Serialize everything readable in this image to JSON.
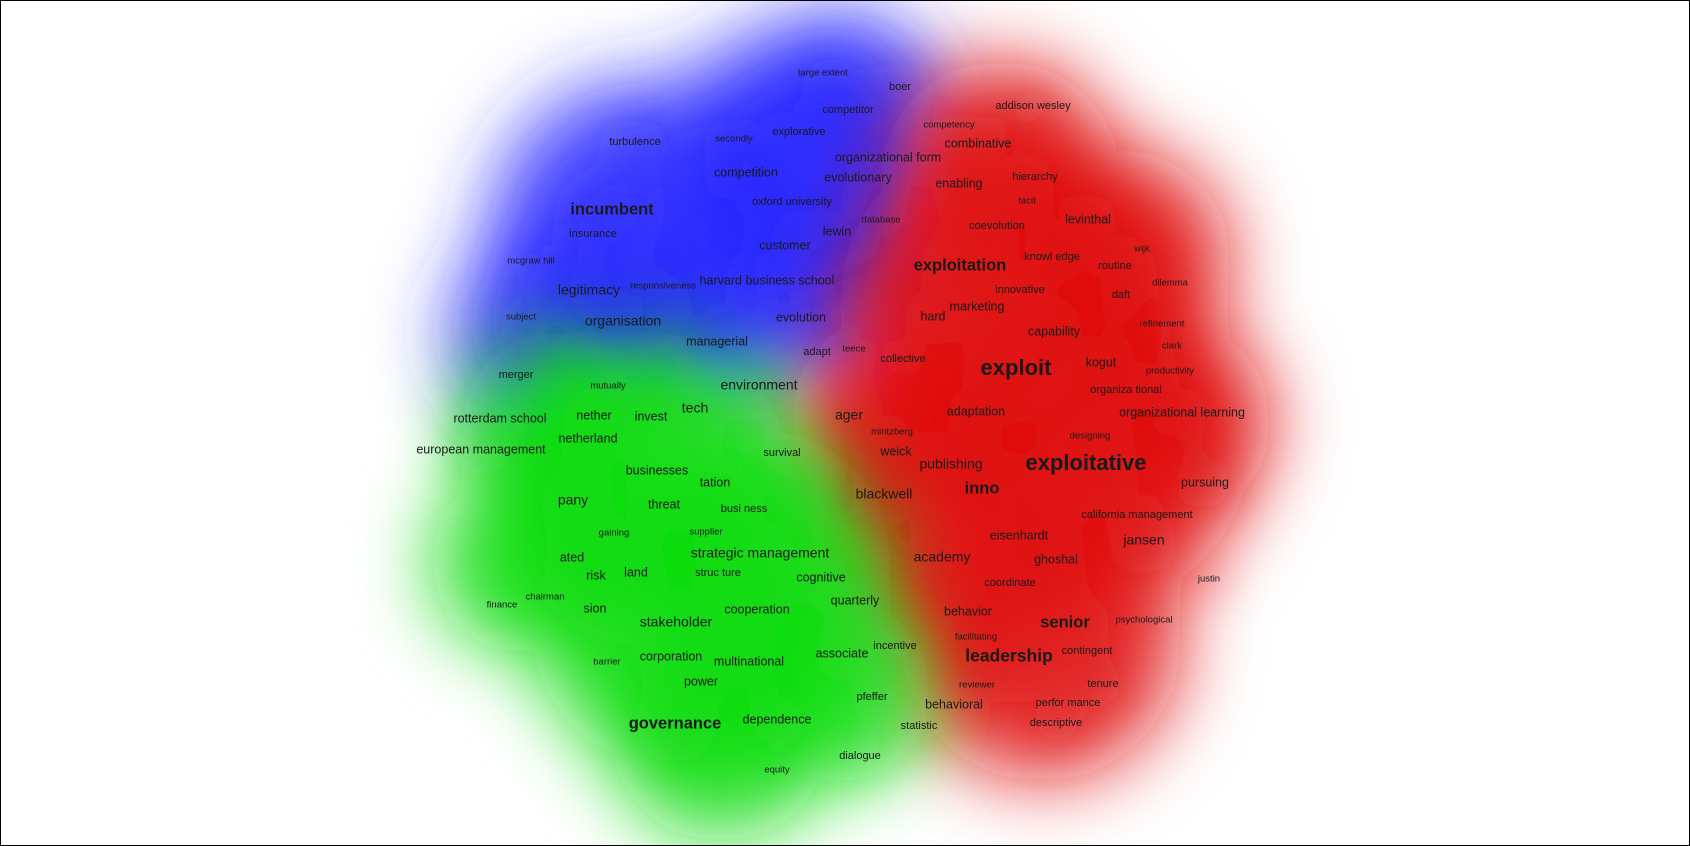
{
  "clusters": [
    {
      "name": "blue",
      "color": "#2b2bff"
    },
    {
      "name": "red",
      "color": "#e01010"
    },
    {
      "name": "green",
      "color": "#10dd10"
    }
  ],
  "terms": [
    {
      "id": "large-extent",
      "text": "large extent",
      "cluster": "blue",
      "weight": 1
    },
    {
      "id": "boer",
      "text": "boer",
      "cluster": "blue",
      "weight": 2
    },
    {
      "id": "competitor",
      "text": "competitor",
      "cluster": "blue",
      "weight": 2
    },
    {
      "id": "turbulence",
      "text": "turbulence",
      "cluster": "blue",
      "weight": 2
    },
    {
      "id": "secondly",
      "text": "secondly",
      "cluster": "blue",
      "weight": 1
    },
    {
      "id": "explorative",
      "text": "explorative",
      "cluster": "blue",
      "weight": 2
    },
    {
      "id": "organizational-form",
      "text": "organizational form",
      "cluster": "blue",
      "weight": 3
    },
    {
      "id": "competition",
      "text": "competition",
      "cluster": "blue",
      "weight": 3
    },
    {
      "id": "evolutionary",
      "text": "evolutionary",
      "cluster": "blue",
      "weight": 3
    },
    {
      "id": "incumbent",
      "text": "incumbent",
      "cluster": "blue",
      "weight": 5
    },
    {
      "id": "oxford-university",
      "text": "oxford university",
      "cluster": "blue",
      "weight": 2
    },
    {
      "id": "database",
      "text": "database",
      "cluster": "blue",
      "weight": 1
    },
    {
      "id": "insurance",
      "text": "insurance",
      "cluster": "blue",
      "weight": 2
    },
    {
      "id": "lewin",
      "text": "lewin",
      "cluster": "blue",
      "weight": 3
    },
    {
      "id": "customer",
      "text": "customer",
      "cluster": "blue",
      "weight": 3
    },
    {
      "id": "mcgraw-hill",
      "text": "mcgraw hill",
      "cluster": "blue",
      "weight": 1
    },
    {
      "id": "responsiveness",
      "text": "responsiveness",
      "cluster": "blue",
      "weight": 1
    },
    {
      "id": "harvard-business-school",
      "text": "harvard business school",
      "cluster": "blue",
      "weight": 3
    },
    {
      "id": "legitimacy",
      "text": "legitimacy",
      "cluster": "blue",
      "weight": 4
    },
    {
      "id": "subject",
      "text": "subject",
      "cluster": "blue",
      "weight": 1
    },
    {
      "id": "organisation",
      "text": "organisation",
      "cluster": "blue",
      "weight": 4
    },
    {
      "id": "evolution",
      "text": "evolution",
      "cluster": "blue",
      "weight": 3
    },
    {
      "id": "managerial",
      "text": "managerial",
      "cluster": "blue",
      "weight": 3
    },
    {
      "id": "adapt",
      "text": "adapt",
      "cluster": "blue",
      "weight": 2
    },
    {
      "id": "teece",
      "text": "teece",
      "cluster": "blue",
      "weight": 1
    },
    {
      "id": "merger",
      "text": "merger",
      "cluster": "blue",
      "weight": 2
    },
    {
      "id": "addison-wesley",
      "text": "addison wesley",
      "cluster": "red",
      "weight": 2
    },
    {
      "id": "competency",
      "text": "competency",
      "cluster": "red",
      "weight": 1
    },
    {
      "id": "combinative",
      "text": "combinative",
      "cluster": "red",
      "weight": 3
    },
    {
      "id": "hierarchy",
      "text": "hierarchy",
      "cluster": "red",
      "weight": 2
    },
    {
      "id": "enabling",
      "text": "enabling",
      "cluster": "red",
      "weight": 3
    },
    {
      "id": "tacit",
      "text": "tacit",
      "cluster": "red",
      "weight": 1
    },
    {
      "id": "coevolution",
      "text": "coevolution",
      "cluster": "red",
      "weight": 2
    },
    {
      "id": "levinthal",
      "text": "levinthal",
      "cluster": "red",
      "weight": 3
    },
    {
      "id": "wijk",
      "text": "wijk",
      "cluster": "red",
      "weight": 1
    },
    {
      "id": "exploitation",
      "text": "exploitation",
      "cluster": "red",
      "weight": 5
    },
    {
      "id": "knowl-edge",
      "text": "knowl edge",
      "cluster": "red",
      "weight": 2
    },
    {
      "id": "routine",
      "text": "routine",
      "cluster": "red",
      "weight": 2
    },
    {
      "id": "dilemma",
      "text": "dilemma",
      "cluster": "red",
      "weight": 1
    },
    {
      "id": "innovative",
      "text": "innovative",
      "cluster": "red",
      "weight": 2
    },
    {
      "id": "daft",
      "text": "daft",
      "cluster": "red",
      "weight": 2
    },
    {
      "id": "marketing",
      "text": "marketing",
      "cluster": "red",
      "weight": 3
    },
    {
      "id": "hard",
      "text": "hard",
      "cluster": "red",
      "weight": 3
    },
    {
      "id": "refinement",
      "text": "refinement",
      "cluster": "red",
      "weight": 1
    },
    {
      "id": "capability",
      "text": "capability",
      "cluster": "red",
      "weight": 3
    },
    {
      "id": "clark",
      "text": "clark",
      "cluster": "red",
      "weight": 1
    },
    {
      "id": "collective",
      "text": "collective",
      "cluster": "red",
      "weight": 2
    },
    {
      "id": "exploit",
      "text": "exploit",
      "cluster": "red",
      "weight": 7
    },
    {
      "id": "kogut",
      "text": "kogut",
      "cluster": "red",
      "weight": 3
    },
    {
      "id": "productivity",
      "text": "productivity",
      "cluster": "red",
      "weight": 1
    },
    {
      "id": "organiza-tional",
      "text": "organiza tional",
      "cluster": "red",
      "weight": 2
    },
    {
      "id": "ager",
      "text": "ager",
      "cluster": "red",
      "weight": 4
    },
    {
      "id": "adaptation",
      "text": "adaptation",
      "cluster": "red",
      "weight": 3
    },
    {
      "id": "organizational-learning",
      "text": "organizational learning",
      "cluster": "red",
      "weight": 3
    },
    {
      "id": "mintzberg",
      "text": "mintzberg",
      "cluster": "red",
      "weight": 1
    },
    {
      "id": "designing",
      "text": "designing",
      "cluster": "red",
      "weight": 1
    },
    {
      "id": "weick",
      "text": "weick",
      "cluster": "red",
      "weight": 3
    },
    {
      "id": "publishing",
      "text": "publishing",
      "cluster": "red",
      "weight": 4
    },
    {
      "id": "exploitative",
      "text": "exploitative",
      "cluster": "red",
      "weight": 7
    },
    {
      "id": "pursuing",
      "text": "pursuing",
      "cluster": "red",
      "weight": 3
    },
    {
      "id": "inno",
      "text": "inno",
      "cluster": "red",
      "weight": 5
    },
    {
      "id": "blackwell",
      "text": "blackwell",
      "cluster": "red",
      "weight": 4
    },
    {
      "id": "california-management",
      "text": "california management",
      "cluster": "red",
      "weight": 2
    },
    {
      "id": "eisenhardt",
      "text": "eisenhardt",
      "cluster": "red",
      "weight": 3
    },
    {
      "id": "jansen",
      "text": "jansen",
      "cluster": "red",
      "weight": 4
    },
    {
      "id": "academy",
      "text": "academy",
      "cluster": "red",
      "weight": 4
    },
    {
      "id": "ghoshal",
      "text": "ghoshal",
      "cluster": "red",
      "weight": 3
    },
    {
      "id": "coordinate",
      "text": "coordinate",
      "cluster": "red",
      "weight": 2
    },
    {
      "id": "justin",
      "text": "justin",
      "cluster": "red",
      "weight": 1
    },
    {
      "id": "behavior",
      "text": "behavior",
      "cluster": "red",
      "weight": 3
    },
    {
      "id": "senior",
      "text": "senior",
      "cluster": "red",
      "weight": 5
    },
    {
      "id": "psychological",
      "text": "psychological",
      "cluster": "red",
      "weight": 1
    },
    {
      "id": "facilitating",
      "text": "facilitating",
      "cluster": "red",
      "weight": 1
    },
    {
      "id": "leadership",
      "text": "leadership",
      "cluster": "red",
      "weight": 6
    },
    {
      "id": "contingent",
      "text": "contingent",
      "cluster": "red",
      "weight": 2
    },
    {
      "id": "reviewer",
      "text": "reviewer",
      "cluster": "red",
      "weight": 1
    },
    {
      "id": "tenure",
      "text": "tenure",
      "cluster": "red",
      "weight": 2
    },
    {
      "id": "behavioral",
      "text": "behavioral",
      "cluster": "red",
      "weight": 3
    },
    {
      "id": "perfor-mance",
      "text": "perfor mance",
      "cluster": "red",
      "weight": 2
    },
    {
      "id": "descriptive",
      "text": "descriptive",
      "cluster": "red",
      "weight": 2
    },
    {
      "id": "mutually",
      "text": "mutually",
      "cluster": "green",
      "weight": 1
    },
    {
      "id": "environment",
      "text": "environment",
      "cluster": "green",
      "weight": 4
    },
    {
      "id": "rotterdam-school",
      "text": "rotterdam school",
      "cluster": "green",
      "weight": 3
    },
    {
      "id": "nether",
      "text": "nether",
      "cluster": "green",
      "weight": 3
    },
    {
      "id": "invest",
      "text": "invest",
      "cluster": "green",
      "weight": 3
    },
    {
      "id": "tech",
      "text": "tech",
      "cluster": "green",
      "weight": 4
    },
    {
      "id": "netherland",
      "text": "netherland",
      "cluster": "green",
      "weight": 3
    },
    {
      "id": "european-management",
      "text": "european management",
      "cluster": "green",
      "weight": 3
    },
    {
      "id": "survival",
      "text": "survival",
      "cluster": "green",
      "weight": 2
    },
    {
      "id": "businesses",
      "text": "businesses",
      "cluster": "green",
      "weight": 3
    },
    {
      "id": "tation",
      "text": "tation",
      "cluster": "green",
      "weight": 3
    },
    {
      "id": "pany",
      "text": "pany",
      "cluster": "green",
      "weight": 4
    },
    {
      "id": "threat",
      "text": "threat",
      "cluster": "green",
      "weight": 3
    },
    {
      "id": "busi-ness",
      "text": "busi ness",
      "cluster": "green",
      "weight": 2
    },
    {
      "id": "gaining",
      "text": "gaining",
      "cluster": "green",
      "weight": 1
    },
    {
      "id": "supplier",
      "text": "supplier",
      "cluster": "green",
      "weight": 1
    },
    {
      "id": "strategic-management",
      "text": "strategic management",
      "cluster": "green",
      "weight": 4
    },
    {
      "id": "ated",
      "text": "ated",
      "cluster": "green",
      "weight": 3
    },
    {
      "id": "struc-ture",
      "text": "struc ture",
      "cluster": "green",
      "weight": 2
    },
    {
      "id": "risk",
      "text": "risk",
      "cluster": "green",
      "weight": 3
    },
    {
      "id": "land",
      "text": "land",
      "cluster": "green",
      "weight": 3
    },
    {
      "id": "cognitive",
      "text": "cognitive",
      "cluster": "green",
      "weight": 3
    },
    {
      "id": "chairman",
      "text": "chairman",
      "cluster": "green",
      "weight": 1
    },
    {
      "id": "finance",
      "text": "finance",
      "cluster": "green",
      "weight": 1
    },
    {
      "id": "sion",
      "text": "sion",
      "cluster": "green",
      "weight": 3
    },
    {
      "id": "quarterly",
      "text": "quarterly",
      "cluster": "green",
      "weight": 3
    },
    {
      "id": "stakeholder",
      "text": "stakeholder",
      "cluster": "green",
      "weight": 4
    },
    {
      "id": "cooperation",
      "text": "cooperation",
      "cluster": "green",
      "weight": 3
    },
    {
      "id": "incentive",
      "text": "incentive",
      "cluster": "green",
      "weight": 2
    },
    {
      "id": "associate",
      "text": "associate",
      "cluster": "green",
      "weight": 3
    },
    {
      "id": "barrier",
      "text": "barrier",
      "cluster": "green",
      "weight": 1
    },
    {
      "id": "corporation",
      "text": "corporation",
      "cluster": "green",
      "weight": 3
    },
    {
      "id": "multinational",
      "text": "multinational",
      "cluster": "green",
      "weight": 3
    },
    {
      "id": "power",
      "text": "power",
      "cluster": "green",
      "weight": 3
    },
    {
      "id": "pfeffer",
      "text": "pfeffer",
      "cluster": "green",
      "weight": 2
    },
    {
      "id": "governance",
      "text": "governance",
      "cluster": "green",
      "weight": 5
    },
    {
      "id": "dependence",
      "text": "dependence",
      "cluster": "green",
      "weight": 3
    },
    {
      "id": "statistic",
      "text": "statistic",
      "cluster": "green",
      "weight": 2
    },
    {
      "id": "dialogue",
      "text": "dialogue",
      "cluster": "green",
      "weight": 2
    },
    {
      "id": "equity",
      "text": "equity",
      "cluster": "green",
      "weight": 1
    }
  ]
}
